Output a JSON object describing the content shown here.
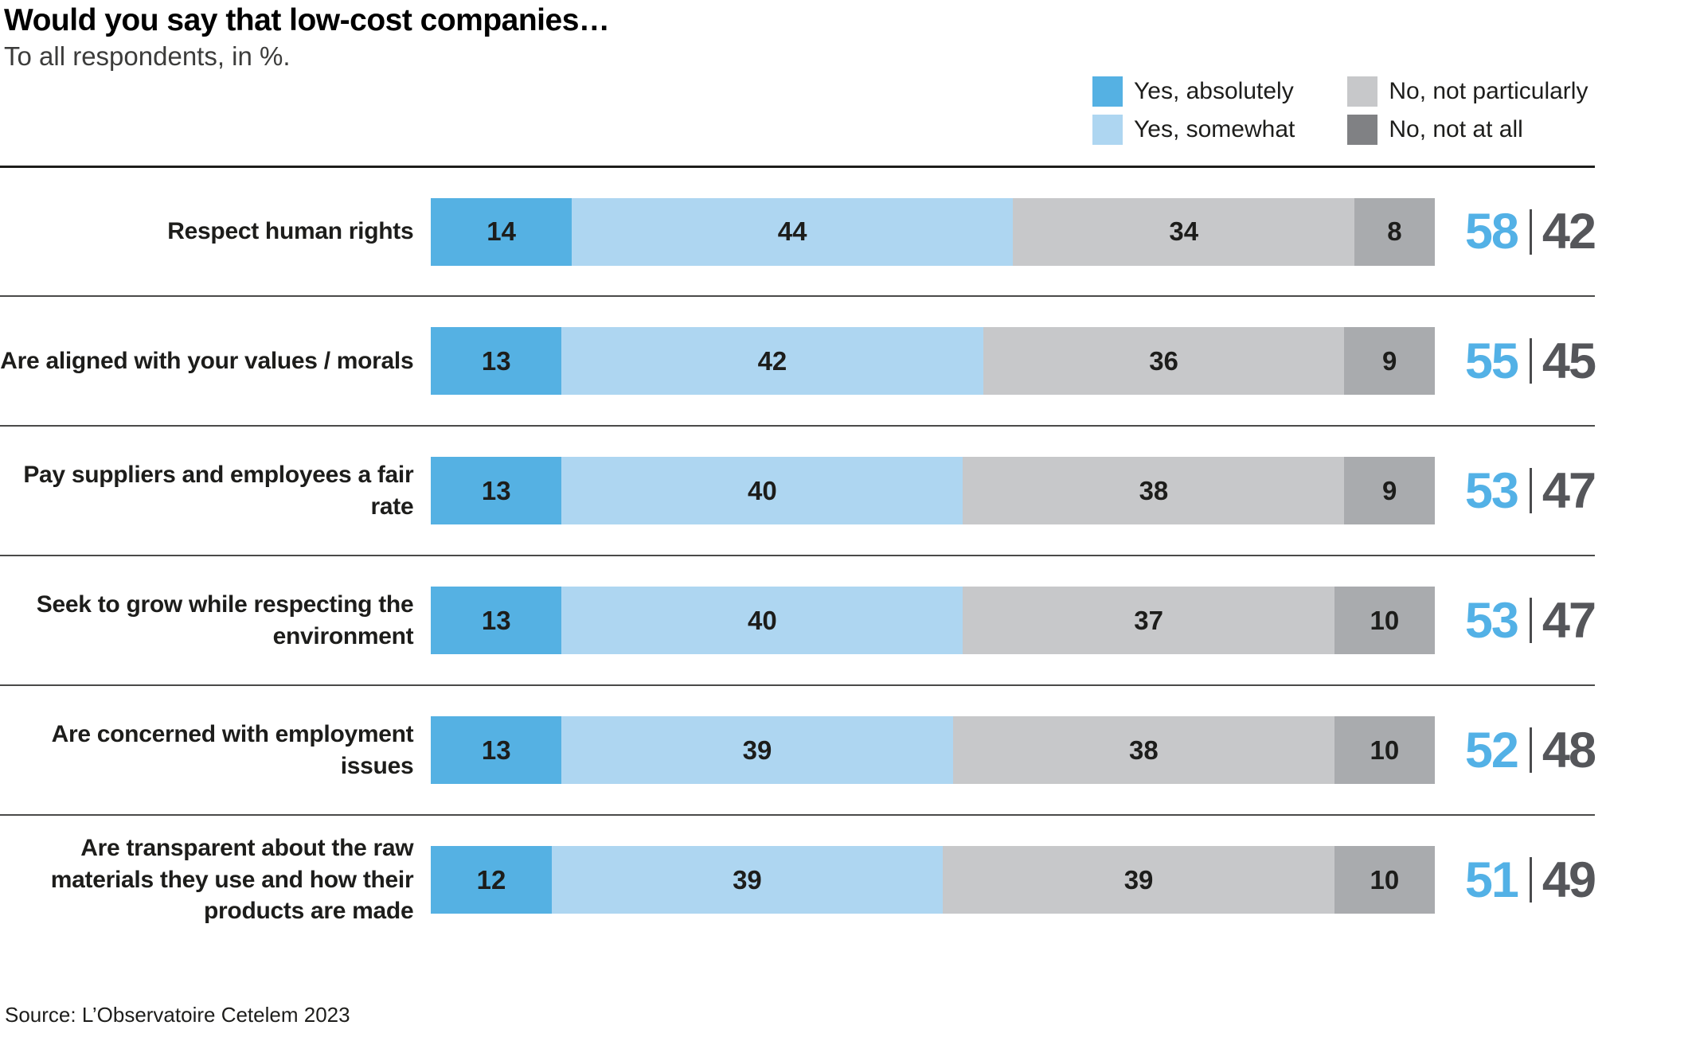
{
  "title": "Would you say that low-cost companies…",
  "subtitle": "To all respondents, in %.",
  "source": "Source: L’Observatoire Cetelem 2023",
  "colors": {
    "yes_absolutely": "#55b1e3",
    "yes_somewhat": "#aed6f1",
    "no_not_particularly": "#c7c8ca",
    "no_not_at_all_bar": "#a9abae",
    "no_not_at_all_legend": "#808184",
    "total_yes": "#53b1e6",
    "total_no": "#55565a"
  },
  "legend": [
    {
      "label": "Yes, absolutely",
      "color": "#55b1e3"
    },
    {
      "label": "Yes, somewhat",
      "color": "#aed6f1"
    },
    {
      "label": "No, not particularly",
      "color": "#c7c8ca"
    },
    {
      "label": "No, not at all",
      "color": "#808184"
    }
  ],
  "chart_data": {
    "type": "bar",
    "stacked": true,
    "orientation": "horizontal",
    "xlim": [
      0,
      100
    ],
    "grid": false,
    "legend_position": "top-right",
    "series_names": [
      "Yes, absolutely",
      "Yes, somewhat",
      "No, not particularly",
      "No, not at all"
    ],
    "segment_colors": [
      "#55b1e3",
      "#aed6f1",
      "#c7c8ca",
      "#a9abae"
    ],
    "categories": [
      "Respect human rights",
      "Are aligned with your values / morals",
      "Pay suppliers and employees a fair rate",
      "Seek to grow while respecting the environment",
      "Are concerned with employment issues",
      "Are transparent about the raw materials they use and how their products are made"
    ],
    "series": [
      {
        "name": "Yes, absolutely",
        "values": [
          14,
          13,
          13,
          13,
          13,
          12
        ]
      },
      {
        "name": "Yes, somewhat",
        "values": [
          44,
          42,
          40,
          40,
          39,
          39
        ]
      },
      {
        "name": "No, not particularly",
        "values": [
          34,
          36,
          38,
          37,
          38,
          39
        ]
      },
      {
        "name": "No, not at all",
        "values": [
          8,
          9,
          9,
          10,
          10,
          10
        ]
      }
    ],
    "rows": [
      {
        "label": "Respect human rights",
        "values": [
          14,
          44,
          34,
          8
        ],
        "total_yes": "58",
        "total_no": "42"
      },
      {
        "label": "Are aligned with your values / morals",
        "values": [
          13,
          42,
          36,
          9
        ],
        "total_yes": "55",
        "total_no": "45"
      },
      {
        "label": "Pay suppliers and employees a fair rate",
        "values": [
          13,
          40,
          38,
          9
        ],
        "total_yes": "53",
        "total_no": "47"
      },
      {
        "label": "Seek to grow while respecting the environment",
        "values": [
          13,
          40,
          37,
          10
        ],
        "total_yes": "53",
        "total_no": "47"
      },
      {
        "label": "Are concerned with employment issues",
        "values": [
          13,
          39,
          38,
          10
        ],
        "total_yes": "52",
        "total_no": "48"
      },
      {
        "label": "Are transparent about the raw materials they use and how their products are made",
        "values": [
          12,
          39,
          39,
          10
        ],
        "total_yes": "51",
        "total_no": "49"
      }
    ]
  }
}
